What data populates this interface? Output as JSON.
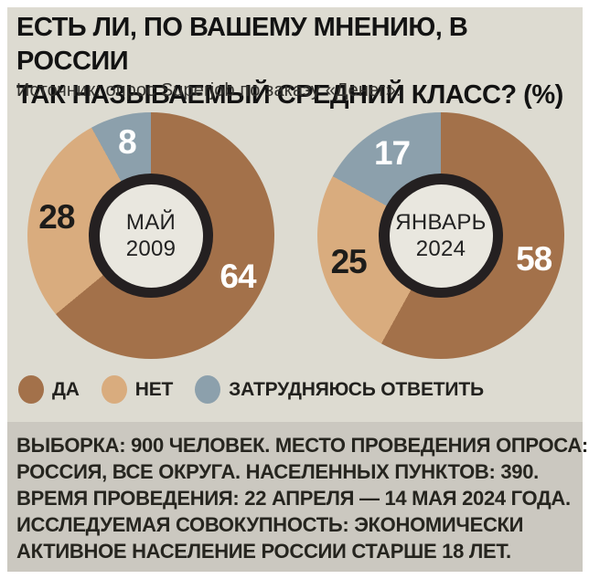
{
  "title": {
    "lines": [
      "ЕСТЬ ЛИ, ПО ВАШЕМУ МНЕНИЮ, В РОССИИ",
      "ТАК НАЗЫВАЕМЫЙ СРЕДНИЙ КЛАСС? (%)"
    ]
  },
  "source": {
    "text": "Источник: опрос Superjob по заказу «Денег»."
  },
  "legend": [
    {
      "label": "ДА",
      "color": "#a3714a"
    },
    {
      "label": "НЕТ",
      "color": "#d9ac7e"
    },
    {
      "label": "ЗАТРУДНЯЮСЬ ОТВЕТИТЬ",
      "color": "#8ca0ac"
    }
  ],
  "colors": {
    "background": "#dddbd1",
    "footnote_background": "#cbc8c0",
    "donut_ring": "#242021",
    "donut_hole": "#e9e7df",
    "yes": "#a3714a",
    "no": "#d9ac7e",
    "undecided": "#8ca0ac"
  },
  "chart_data": [
    {
      "type": "pie",
      "title": "МАЙ 2009",
      "center_lines": [
        "МАЙ 2009"
      ],
      "categories": [
        "ДА",
        "НЕТ",
        "ЗАТРУДНЯЮСЬ ОТВЕТИТЬ"
      ],
      "values": [
        64,
        28,
        8
      ],
      "unit": "%",
      "colors": [
        "#a3714a",
        "#d9ac7e",
        "#8ca0ac"
      ],
      "value_colors": [
        "#ffffff",
        "#1d1c1a",
        "#ffffff"
      ],
      "layout": "donut, slices clockwise from 12 o'clock, values labeled inside slices"
    },
    {
      "type": "pie",
      "title": "ЯНВАРЬ 2024",
      "center_lines": [
        "ЯНВАРЬ",
        "2024"
      ],
      "categories": [
        "ДА",
        "НЕТ",
        "ЗАТРУДНЯЮСЬ ОТВЕТИТЬ"
      ],
      "values": [
        58,
        25,
        17
      ],
      "unit": "%",
      "colors": [
        "#a3714a",
        "#d9ac7e",
        "#8ca0ac"
      ],
      "value_colors": [
        "#ffffff",
        "#1d1c1a",
        "#ffffff"
      ],
      "layout": "donut, slices clockwise from 12 o'clock, values labeled inside slices"
    }
  ],
  "footnote": {
    "lines": [
      "ВЫБОРКА: 900 ЧЕЛОВЕК. МЕСТО ПРОВЕДЕНИЯ ОПРОСА:",
      "РОССИЯ, ВСЕ ОКРУГА. НАСЕЛЕННЫХ ПУНКТОВ: 390.",
      "ВРЕМЯ ПРОВЕДЕНИЯ: 22 АПРЕЛЯ — 14 МАЯ 2024 ГОДА.",
      "ИССЛЕДУЕМАЯ СОВОКУПНОСТЬ: ЭКОНОМИЧЕСКИ",
      "АКТИВНОЕ НАСЕЛЕНИЕ РОССИИ СТАРШЕ 18 ЛЕТ."
    ]
  }
}
